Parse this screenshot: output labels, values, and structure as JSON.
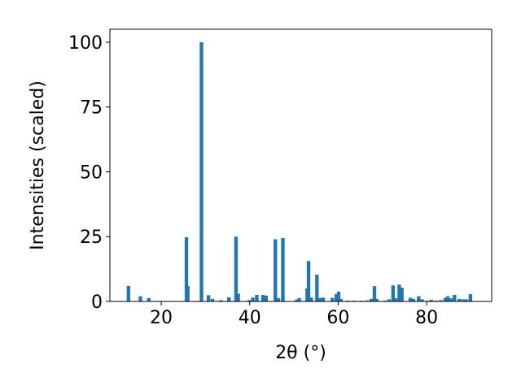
{
  "chart_data": {
    "type": "bar",
    "xlabel": "2θ (°)",
    "ylabel": "Intensities (scaled)",
    "color": "#1f77b4",
    "x": [
      12.6,
      15.3,
      17.2,
      25.7,
      26.0,
      29.1,
      30.7,
      31.6,
      33.5,
      35.3,
      36.9,
      37.4,
      39.9,
      40.7,
      41.6,
      43.0,
      43.7,
      45.8,
      46.5,
      47.5,
      50.6,
      51.2,
      53.0,
      53.3,
      53.9,
      55.2,
      56.0,
      56.6,
      58.7,
      59.6,
      60.1,
      60.6,
      62.1,
      63.6,
      65.2,
      66.5,
      67.5,
      68.2,
      68.7,
      70.6,
      71.5,
      72.4,
      73.0,
      73.8,
      74.4,
      76.3,
      77.0,
      78.2,
      79.0,
      80.5,
      81.1,
      82.2,
      83.2,
      84.2,
      84.8,
      85.5,
      86.3,
      87.4,
      88.3,
      89.0,
      89.9
    ],
    "values": [
      6,
      2,
      1.3,
      24.8,
      6,
      100,
      2.4,
      1,
      0.5,
      1.6,
      25,
      3,
      0.5,
      1.5,
      2.5,
      2.5,
      2.2,
      24,
      1.3,
      24.5,
      0.7,
      1.3,
      5,
      15.6,
      1.5,
      10.3,
      1.3,
      1.5,
      1.4,
      2.8,
      3.8,
      1,
      0.3,
      0.3,
      0.3,
      0.4,
      1,
      5.9,
      1,
      0.3,
      0.8,
      6.2,
      1.2,
      6.5,
      5.3,
      1.4,
      1,
      2,
      0.8,
      0.3,
      0.6,
      0.3,
      0.5,
      1.4,
      2,
      1.2,
      2.5,
      1,
      0.8,
      0.8,
      2.8
    ],
    "xlim": [
      8.4,
      94.7
    ],
    "ylim": [
      0,
      105
    ],
    "xticks": [
      20,
      40,
      60,
      80
    ],
    "yticks": [
      0,
      25,
      50,
      75,
      100
    ]
  }
}
